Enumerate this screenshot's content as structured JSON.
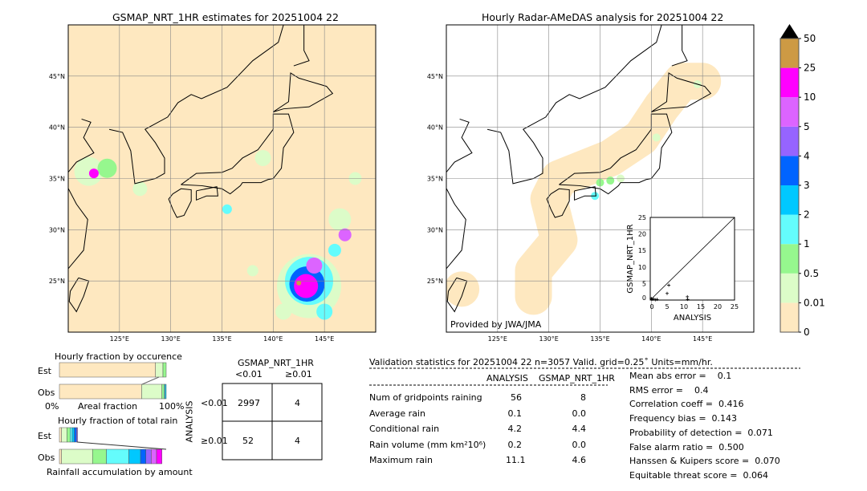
{
  "left_map": {
    "title": "GSMAP_NRT_1HR estimates for 20251004 22"
  },
  "right_map": {
    "title": "Hourly Radar-AMeDAS analysis for 20251004 22",
    "credit": "Provided by JWA/JMA"
  },
  "map_ticks": {
    "lon": [
      {
        "v": 125,
        "label": "125°E"
      },
      {
        "v": 130,
        "label": "130°E"
      },
      {
        "v": 135,
        "label": "135°E"
      },
      {
        "v": 140,
        "label": "140°E"
      },
      {
        "v": 145,
        "label": "145°E"
      }
    ],
    "lat": [
      {
        "v": 45,
        "label": "45°N"
      },
      {
        "v": 40,
        "label": "40°N"
      },
      {
        "v": 35,
        "label": "35°N"
      },
      {
        "v": 30,
        "label": "30°N"
      },
      {
        "v": 25,
        "label": "25°N"
      }
    ]
  },
  "colorbar": {
    "levels": [
      "0",
      "0.01",
      "0.5",
      "1",
      "2",
      "3",
      "4",
      "5",
      "10",
      "25",
      "50"
    ],
    "colors": [
      "#fee8c0",
      "#dcfcc8",
      "#96f78e",
      "#64fcfc",
      "#00c8ff",
      "#0064ff",
      "#9664ff",
      "#dc64ff",
      "#ff00ff",
      "#cd9a44"
    ],
    "extend_color": "#000000"
  },
  "chart_data": [
    {
      "type": "scatter",
      "xlabel": "ANALYSIS",
      "ylabel": "GSMAP_NRT_1HR",
      "xlim": [
        0,
        25
      ],
      "ylim": [
        0,
        25
      ],
      "ticks": [
        "0",
        "5",
        "10",
        "15",
        "20",
        "25"
      ],
      "points": [
        [
          0.3,
          0.5
        ],
        [
          0.5,
          0.2
        ],
        [
          1,
          0.3
        ],
        [
          1.5,
          0.1
        ],
        [
          2,
          0.2
        ],
        [
          5,
          2
        ],
        [
          5.5,
          4.5
        ],
        [
          11,
          1
        ],
        [
          11.1,
          0.2
        ]
      ]
    },
    {
      "type": "bar",
      "title": "Hourly fraction by occurence",
      "categories": [
        "Est",
        "Obs"
      ],
      "xlabel": "Areal fraction",
      "ticks": [
        "0%",
        "100%"
      ],
      "series": {
        "Est": [
          0.9,
          0.07,
          0.03
        ],
        "Obs": [
          0.77,
          0.19,
          0.02,
          0.01,
          0.01
        ]
      }
    },
    {
      "type": "bar",
      "title": "Hourly fraction of total rain",
      "categories": [
        "Est",
        "Obs"
      ],
      "xlabel": "Rainfall accumulation by amount",
      "series": {
        "Est": [
          0.02,
          0.05,
          0.03,
          0.02,
          0.02,
          0.02,
          0.01
        ],
        "Obs": [
          0.02,
          0.29,
          0.13,
          0.21,
          0.11,
          0.05,
          0.05,
          0.05,
          0.05
        ]
      }
    }
  ],
  "contingency": {
    "title": "GSMAP_NRT_1HR",
    "col_labels": [
      "<0.01",
      "≥0.01"
    ],
    "row_title": "ANALYSIS",
    "row_labels": [
      "<0.01",
      "≥0.01"
    ],
    "cells": [
      [
        "2997",
        "4"
      ],
      [
        "52",
        "4"
      ]
    ]
  },
  "stats": {
    "header": "Validation statistics for 20251004 22  n=3057 Valid. grid=0.25˚ Units=mm/hr.",
    "col_analysis": "ANALYSIS",
    "col_gsmap": "GSMAP_NRT_1HR",
    "rows": [
      {
        "label": "Num of gridpoints raining",
        "analysis": "56",
        "gsmap": "8"
      },
      {
        "label": "Average rain",
        "analysis": "0.1",
        "gsmap": "0.0"
      },
      {
        "label": "Conditional rain",
        "analysis": "4.2",
        "gsmap": "4.4"
      },
      {
        "label": "Rain volume (mm km²10⁶)",
        "analysis": "0.2",
        "gsmap": "0.0"
      },
      {
        "label": "Maximum rain",
        "analysis": "11.1",
        "gsmap": "4.6"
      }
    ],
    "scores": [
      "Mean abs error =    0.1",
      "RMS error =    0.4",
      "Correlation coeff =  0.416",
      "Frequency bias =  0.143",
      "Probability of detection =  0.071",
      "False alarm ratio =  0.500",
      "Hanssen & Kuipers score =  0.070",
      "Equitable threat score =  0.064"
    ]
  }
}
